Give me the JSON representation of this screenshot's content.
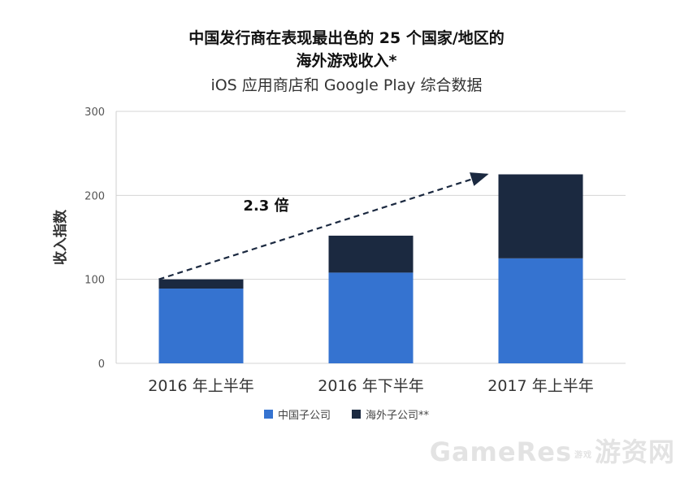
{
  "chart_data": {
    "type": "bar",
    "stacked": true,
    "title_line1": "中国发行商在表现最出色的 25 个国家/地区的",
    "title_line2": "海外游戏收入*",
    "subtitle": "iOS 应用商店和 Google Play 综合数据",
    "ylabel": "收入指数",
    "xlabel": "",
    "ylim": [
      0,
      300
    ],
    "yticks": [
      0,
      100,
      200,
      300
    ],
    "ytick_labels": [
      "0",
      "100",
      "200",
      "300"
    ],
    "grid": true,
    "categories": [
      "2016 年上半年",
      "2016 年下半年",
      "2017 年上半年"
    ],
    "series": [
      {
        "name": "中国子公司",
        "values": [
          89,
          108,
          125
        ],
        "color": "#3573d0"
      },
      {
        "name": "海外子公司**",
        "values": [
          11,
          44,
          100
        ],
        "color": "#1b2940"
      }
    ],
    "annotation": {
      "text": "2.3 倍",
      "from_category": 0,
      "to_category": 2
    },
    "legend_position": "bottom"
  },
  "watermark": {
    "main": "GameRes",
    "small": "游戏",
    "cn": "游资网"
  }
}
